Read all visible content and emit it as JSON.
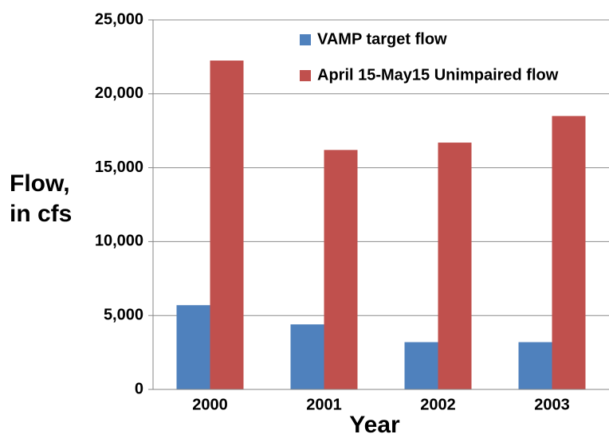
{
  "chart_data": {
    "type": "bar",
    "x_label": "Year",
    "y_label": "Flow, in cfs",
    "categories": [
      "2000",
      "2001",
      "2002",
      "2003"
    ],
    "series": [
      {
        "name": "VAMP target flow",
        "color": "#4f81bd",
        "values": [
          5700,
          4400,
          3200,
          3200
        ]
      },
      {
        "name": "April 15-May15 Unimpaired flow",
        "color": "#c0504d",
        "values": [
          22250,
          16200,
          16700,
          18500
        ]
      }
    ],
    "ylim": [
      0,
      25000
    ],
    "yticks": [
      0,
      {
        "value": 5000,
        "label": "5,000"
      },
      {
        "value": 10000,
        "label": "10,000"
      },
      {
        "value": 15000,
        "label": "15,000"
      },
      {
        "value": 20000,
        "label": "20,000"
      },
      {
        "value": 25000,
        "label": "25,000"
      }
    ],
    "grid": true,
    "legend": "upper right"
  }
}
